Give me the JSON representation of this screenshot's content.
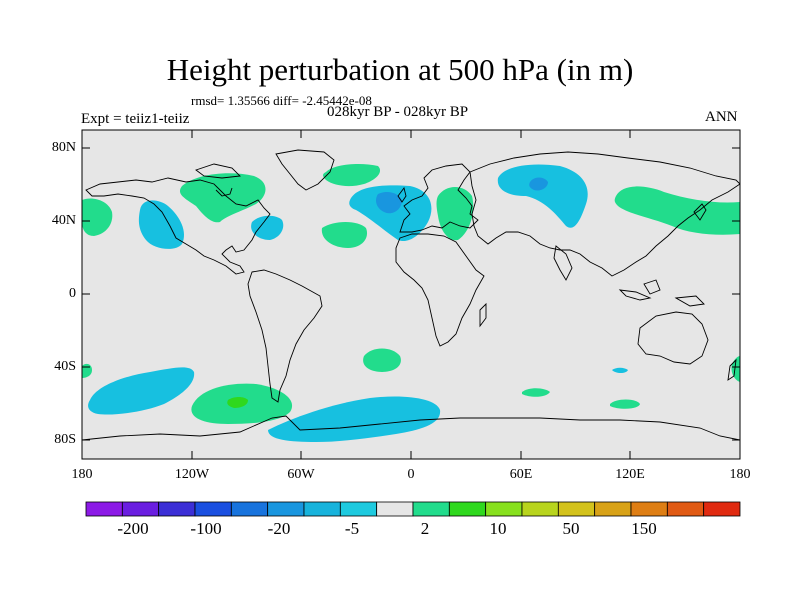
{
  "title": "Height perturbation at 500 hPa (in m)",
  "stats": "rmsd= 1.35566 diff= -2.45442e-08",
  "experiment": "Expt = teiiz1-teiiz",
  "period": "028kyr BP - 028kyr BP",
  "season": "ANN",
  "axes": {
    "y_ticks": [
      "80N",
      "40N",
      "0",
      "40S",
      "80S"
    ],
    "x_ticks": [
      "180",
      "120W",
      "60W",
      "0",
      "60E",
      "120E",
      "180"
    ]
  },
  "map": {
    "background_color": "#e6e6e6",
    "coastline_color": "#000000",
    "projection": "cylindrical equidistant"
  },
  "colorbar": {
    "labels": [
      "-200",
      "-100",
      "-20",
      "-5",
      "2",
      "10",
      "50",
      "150"
    ],
    "colors": [
      "#8c1ae6",
      "#6a1ee0",
      "#3c2fd6",
      "#1a4fe0",
      "#1873dd",
      "#1996df",
      "#17b3dc",
      "#1ecadf",
      "#e6e6e6",
      "#22dc8c",
      "#2fd81e",
      "#87e01d",
      "#b8d41d",
      "#d3c21c",
      "#d8a217",
      "#de7e14",
      "#e05a14",
      "#e02a10"
    ]
  },
  "chart_data": {
    "type": "heatmap",
    "title": "Height perturbation at 500 hPa (in m)",
    "xlim": [
      -180,
      180
    ],
    "ylim": [
      -90,
      90
    ],
    "levels": [
      -200,
      -100,
      -20,
      -5,
      2,
      10,
      50,
      150
    ],
    "anomaly_regions": [
      {
        "fill": "#17c0e0",
        "lon": -130,
        "lat": 42,
        "approx_value": -5
      },
      {
        "fill": "#17c0e0",
        "lon": -78,
        "lat": 38,
        "approx_value": -5
      },
      {
        "fill": "#17c0e0",
        "lon": -15,
        "lat": 47,
        "approx_value": -5
      },
      {
        "fill": "#1996df",
        "lon": -15,
        "lat": 50,
        "approx_value": -20
      },
      {
        "fill": "#17c0e0",
        "lon": 70,
        "lat": 55,
        "approx_value": -5
      },
      {
        "fill": "#1996df",
        "lon": 72,
        "lat": 62,
        "approx_value": -20
      },
      {
        "fill": "#17c0e0",
        "lon": -130,
        "lat": -55,
        "approx_value": -5
      },
      {
        "fill": "#17c0e0",
        "lon": -25,
        "lat": -72,
        "approx_value": -5
      },
      {
        "fill": "#17c0e0",
        "lon": 120,
        "lat": -40,
        "approx_value": -5
      },
      {
        "fill": "#22dc8c",
        "lon": -85,
        "lat": 60,
        "approx_value": 5
      },
      {
        "fill": "#22dc8c",
        "lon": -55,
        "lat": 68,
        "approx_value": 5
      },
      {
        "fill": "#22dc8c",
        "lon": -170,
        "lat": 45,
        "approx_value": 5
      },
      {
        "fill": "#22dc8c",
        "lon": -40,
        "lat": 35,
        "approx_value": 5
      },
      {
        "fill": "#22dc8c",
        "lon": 25,
        "lat": 45,
        "approx_value": 5
      },
      {
        "fill": "#22dc8c",
        "lon": 140,
        "lat": 45,
        "approx_value": 5
      },
      {
        "fill": "#22dc8c",
        "lon": -95,
        "lat": -55,
        "approx_value": 5
      },
      {
        "fill": "#2fd81e",
        "lon": -95,
        "lat": -58,
        "approx_value": 10
      },
      {
        "fill": "#22dc8c",
        "lon": -15,
        "lat": -35,
        "approx_value": 5
      },
      {
        "fill": "#22dc8c",
        "lon": 65,
        "lat": -52,
        "approx_value": 5
      },
      {
        "fill": "#22dc8c",
        "lon": 110,
        "lat": -60,
        "approx_value": 5
      },
      {
        "fill": "#22dc8c",
        "lon": 178,
        "lat": -40,
        "approx_value": 5
      }
    ]
  }
}
